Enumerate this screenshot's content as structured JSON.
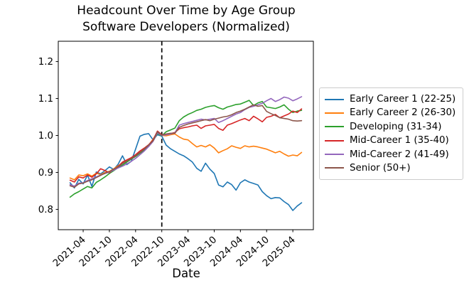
{
  "chart_data": {
    "type": "line",
    "title": "Headcount Over Time by Age Group",
    "subtitle": "Software Developers (Normalized)",
    "xlabel": "Date",
    "ylabel": "",
    "grid": false,
    "legend_position": "center right, outside axes",
    "ylim": [
      0.745,
      1.255
    ],
    "y_ticks": [
      0.8,
      0.9,
      1.0,
      1.1,
      1.2
    ],
    "x_tick_labels": [
      "2021-04",
      "2021-10",
      "2022-04",
      "2022-10",
      "2023-04",
      "2023-10",
      "2024-04",
      "2024-10",
      "2025-04"
    ],
    "vline": {
      "x": "2022-10",
      "style": "dashed",
      "color": "#000000"
    },
    "x": [
      "2021-01",
      "2021-02",
      "2021-03",
      "2021-04",
      "2021-05",
      "2021-06",
      "2021-07",
      "2021-08",
      "2021-09",
      "2021-10",
      "2021-11",
      "2021-12",
      "2022-01",
      "2022-02",
      "2022-03",
      "2022-04",
      "2022-05",
      "2022-06",
      "2022-07",
      "2022-08",
      "2022-09",
      "2022-10",
      "2022-11",
      "2022-12",
      "2023-01",
      "2023-02",
      "2023-03",
      "2023-04",
      "2023-05",
      "2023-06",
      "2023-07",
      "2023-08",
      "2023-09",
      "2023-10",
      "2023-11",
      "2023-12",
      "2024-01",
      "2024-02",
      "2024-03",
      "2024-04",
      "2024-05",
      "2024-06",
      "2024-07",
      "2024-08",
      "2024-09",
      "2024-10",
      "2024-11",
      "2024-12",
      "2025-01",
      "2025-02",
      "2025-03",
      "2025-04",
      "2025-05",
      "2025-06"
    ],
    "series": [
      {
        "name": "Early Career 1 (22-25)",
        "color": "#1f77b4",
        "values": [
          0.872,
          0.858,
          0.881,
          0.869,
          0.893,
          0.862,
          0.901,
          0.896,
          0.905,
          0.915,
          0.908,
          0.922,
          0.945,
          0.921,
          0.93,
          0.963,
          0.998,
          1.003,
          1.005,
          0.988,
          1.002,
          0.998,
          0.974,
          0.964,
          0.957,
          0.95,
          0.945,
          0.937,
          0.928,
          0.911,
          0.903,
          0.925,
          0.909,
          0.897,
          0.866,
          0.861,
          0.874,
          0.867,
          0.852,
          0.872,
          0.88,
          0.874,
          0.87,
          0.866,
          0.848,
          0.837,
          0.829,
          0.832,
          0.831,
          0.821,
          0.813,
          0.797,
          0.809,
          0.818
        ]
      },
      {
        "name": "Early Career 2 (26-30)",
        "color": "#ff7f0e",
        "values": [
          0.885,
          0.88,
          0.893,
          0.891,
          0.896,
          0.89,
          0.898,
          0.894,
          0.9,
          0.903,
          0.91,
          0.918,
          0.926,
          0.93,
          0.938,
          0.946,
          0.955,
          0.963,
          0.973,
          0.99,
          1.008,
          1.0,
          0.999,
          1.002,
          1.004,
          0.996,
          0.99,
          0.988,
          0.978,
          0.969,
          0.973,
          0.969,
          0.975,
          0.966,
          0.953,
          0.959,
          0.964,
          0.972,
          0.968,
          0.965,
          0.972,
          0.969,
          0.971,
          0.969,
          0.966,
          0.963,
          0.958,
          0.953,
          0.957,
          0.95,
          0.944,
          0.947,
          0.945,
          0.954
        ]
      },
      {
        "name": "Developing (31-34)",
        "color": "#2ca02c",
        "values": [
          0.833,
          0.842,
          0.848,
          0.855,
          0.862,
          0.858,
          0.873,
          0.88,
          0.888,
          0.897,
          0.905,
          0.913,
          0.92,
          0.928,
          0.936,
          0.943,
          0.952,
          0.96,
          0.971,
          0.985,
          1.005,
          0.999,
          1.01,
          1.015,
          1.02,
          1.04,
          1.05,
          1.057,
          1.062,
          1.068,
          1.071,
          1.076,
          1.079,
          1.081,
          1.075,
          1.071,
          1.077,
          1.08,
          1.084,
          1.085,
          1.09,
          1.095,
          1.081,
          1.088,
          1.092,
          1.077,
          1.075,
          1.073,
          1.077,
          1.083,
          1.071,
          1.062,
          1.066,
          1.068
        ]
      },
      {
        "name": "Mid-Career 1 (35-40)",
        "color": "#d62728",
        "values": [
          0.879,
          0.874,
          0.888,
          0.885,
          0.893,
          0.887,
          0.896,
          0.91,
          0.905,
          0.899,
          0.908,
          0.916,
          0.928,
          0.934,
          0.94,
          0.948,
          0.958,
          0.966,
          0.975,
          0.988,
          1.012,
          1.002,
          1.003,
          1.005,
          1.008,
          1.018,
          1.021,
          1.023,
          1.026,
          1.028,
          1.019,
          1.026,
          1.028,
          1.03,
          1.019,
          1.014,
          1.028,
          1.032,
          1.037,
          1.042,
          1.046,
          1.04,
          1.052,
          1.045,
          1.037,
          1.049,
          1.052,
          1.057,
          1.048,
          1.053,
          1.058,
          1.066,
          1.062,
          1.072
        ]
      },
      {
        "name": "Mid-Career 2 (41-49)",
        "color": "#9467bd",
        "values": [
          0.867,
          0.863,
          0.871,
          0.872,
          0.878,
          0.883,
          0.888,
          0.893,
          0.897,
          0.901,
          0.906,
          0.912,
          0.917,
          0.923,
          0.93,
          0.938,
          0.948,
          0.958,
          0.97,
          0.984,
          1.007,
          1.0,
          1.002,
          1.004,
          1.007,
          1.028,
          1.032,
          1.035,
          1.038,
          1.041,
          1.044,
          1.042,
          1.044,
          1.046,
          1.035,
          1.04,
          1.046,
          1.052,
          1.058,
          1.062,
          1.07,
          1.076,
          1.079,
          1.083,
          1.087,
          1.094,
          1.1,
          1.092,
          1.097,
          1.104,
          1.101,
          1.094,
          1.099,
          1.105
        ]
      },
      {
        "name": "Senior (50+)",
        "color": "#8c564b",
        "values": [
          0.864,
          0.86,
          0.869,
          0.871,
          0.876,
          0.88,
          0.886,
          0.892,
          0.898,
          0.902,
          0.909,
          0.915,
          0.924,
          0.931,
          0.937,
          0.945,
          0.954,
          0.963,
          0.974,
          0.986,
          1.01,
          1.001,
          1.004,
          1.006,
          1.006,
          1.022,
          1.027,
          1.031,
          1.034,
          1.037,
          1.04,
          1.043,
          1.04,
          1.044,
          1.047,
          1.05,
          1.052,
          1.056,
          1.062,
          1.066,
          1.071,
          1.077,
          1.083,
          1.079,
          1.081,
          1.065,
          1.059,
          1.054,
          1.048,
          1.046,
          1.044,
          1.04,
          1.039,
          1.04
        ]
      }
    ]
  }
}
